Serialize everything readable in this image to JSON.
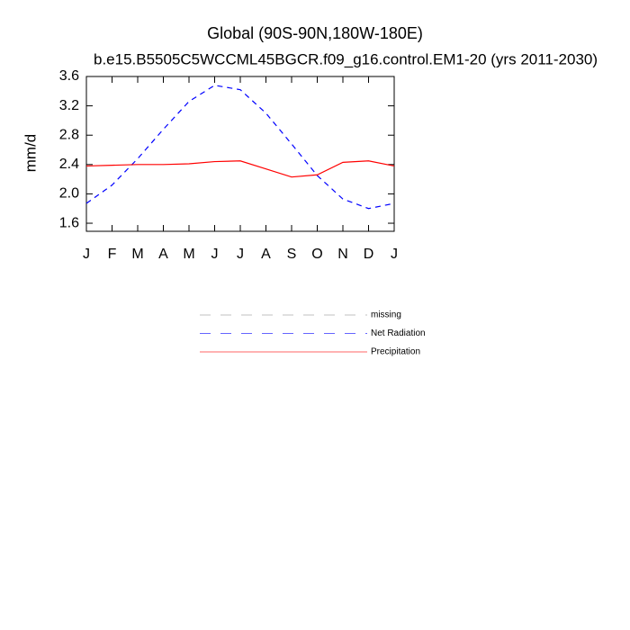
{
  "chart_data": {
    "type": "line",
    "title": "Global (90S-90N,180W-180E)",
    "subtitle": "b.e15.B5505C5WCCML45BGCR.f09_g16.control.EM1-20 (yrs 2011-2030)",
    "ylabel": "mm/d",
    "categories": [
      "J",
      "F",
      "M",
      "A",
      "M",
      "J",
      "J",
      "A",
      "S",
      "O",
      "N",
      "D",
      "J"
    ],
    "series": [
      {
        "name": "missing",
        "color": "#999999",
        "dashed": true,
        "values": [
          null,
          null,
          null,
          null,
          null,
          null,
          null,
          null,
          null,
          null,
          null,
          null,
          null
        ]
      },
      {
        "name": "Net Radiation",
        "color": "#0000ff",
        "dashed": true,
        "values": [
          1.87,
          2.12,
          2.48,
          2.88,
          3.26,
          3.48,
          3.42,
          3.1,
          2.68,
          2.25,
          1.93,
          1.8,
          1.87
        ]
      },
      {
        "name": "Precipitation",
        "color": "#ff0000",
        "dashed": false,
        "values": [
          2.38,
          2.39,
          2.4,
          2.4,
          2.41,
          2.44,
          2.45,
          2.34,
          2.23,
          2.26,
          2.43,
          2.45,
          2.38
        ]
      }
    ],
    "ylim": [
      1.49,
      3.6
    ],
    "yticks": [
      {
        "value": 1.6,
        "label": "1.6"
      },
      {
        "value": 2.0,
        "label": "2.0"
      },
      {
        "value": 2.4,
        "label": "2.4"
      },
      {
        "value": 2.8,
        "label": "2.8"
      },
      {
        "value": 3.2,
        "label": "3.2"
      },
      {
        "value": 3.6,
        "label": "3.6"
      }
    ]
  }
}
